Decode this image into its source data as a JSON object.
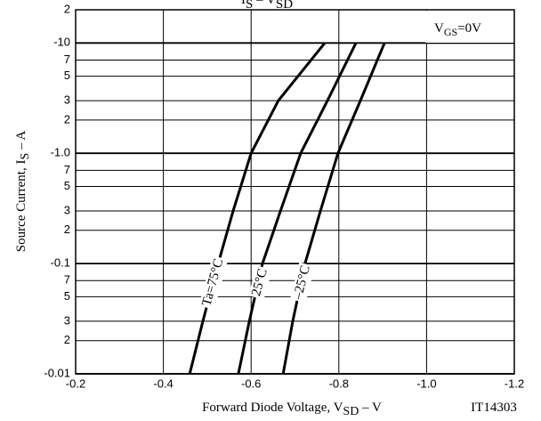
{
  "chart_data": {
    "type": "line",
    "title": [
      "I",
      "S",
      " – V",
      "SD"
    ],
    "annotation": [
      "V",
      "GS",
      "=0V"
    ],
    "xlabel": [
      "Forward  Diode  Voltage, V",
      "SD",
      " – V"
    ],
    "ylabel": [
      "Source Current, I",
      "S",
      " – A"
    ],
    "code": "IT14303",
    "xlim": [
      -0.2,
      -1.2
    ],
    "xticks": [
      -0.2,
      -0.4,
      -0.6,
      -0.8,
      {
        "value": -1,
        "label": "-1.0"
      },
      -1.2
    ],
    "ylim": [
      -0.01,
      -20
    ],
    "log_y": true,
    "yticks": [
      -0.01,
      {
        "value": -0.02,
        "label": "2"
      },
      {
        "value": -0.03,
        "label": "3"
      },
      {
        "value": -0.05,
        "label": "5"
      },
      {
        "value": -0.07,
        "label": "7"
      },
      -0.1,
      {
        "value": -0.2,
        "label": "2"
      },
      {
        "value": -0.3,
        "label": "3"
      },
      {
        "value": -0.5,
        "label": "5"
      },
      {
        "value": -0.7,
        "label": "7"
      },
      {
        "value": -1,
        "label": "-1.0"
      },
      {
        "value": -2,
        "label": "2"
      },
      {
        "value": -3,
        "label": "3"
      },
      {
        "value": -5,
        "label": "5"
      },
      {
        "value": -7,
        "label": "7"
      },
      -10,
      {
        "value": -20,
        "label": "2"
      }
    ],
    "grid": true,
    "color": "#000000",
    "series": [
      {
        "name": "Ta=75°C",
        "x": [
          -0.46,
          -0.49,
          -0.525,
          -0.559,
          -0.6,
          -0.662,
          -0.768
        ],
        "values": [
          -0.01,
          -0.03,
          -0.1,
          -0.3,
          -1,
          -3,
          -10
        ]
      },
      {
        "name": "25°C",
        "x": [
          -0.571,
          -0.596,
          -0.626,
          -0.667,
          -0.713,
          -0.774,
          -0.839
        ],
        "values": [
          -0.01,
          -0.03,
          -0.1,
          -0.3,
          -1,
          -3,
          -10
        ]
      },
      {
        "name": "–25°C",
        "x": [
          -0.673,
          -0.695,
          -0.723,
          -0.758,
          -0.798,
          -0.849,
          -0.904
        ],
        "values": [
          -0.01,
          -0.03,
          -0.1,
          -0.3,
          -1,
          -3,
          -10
        ]
      }
    ]
  }
}
